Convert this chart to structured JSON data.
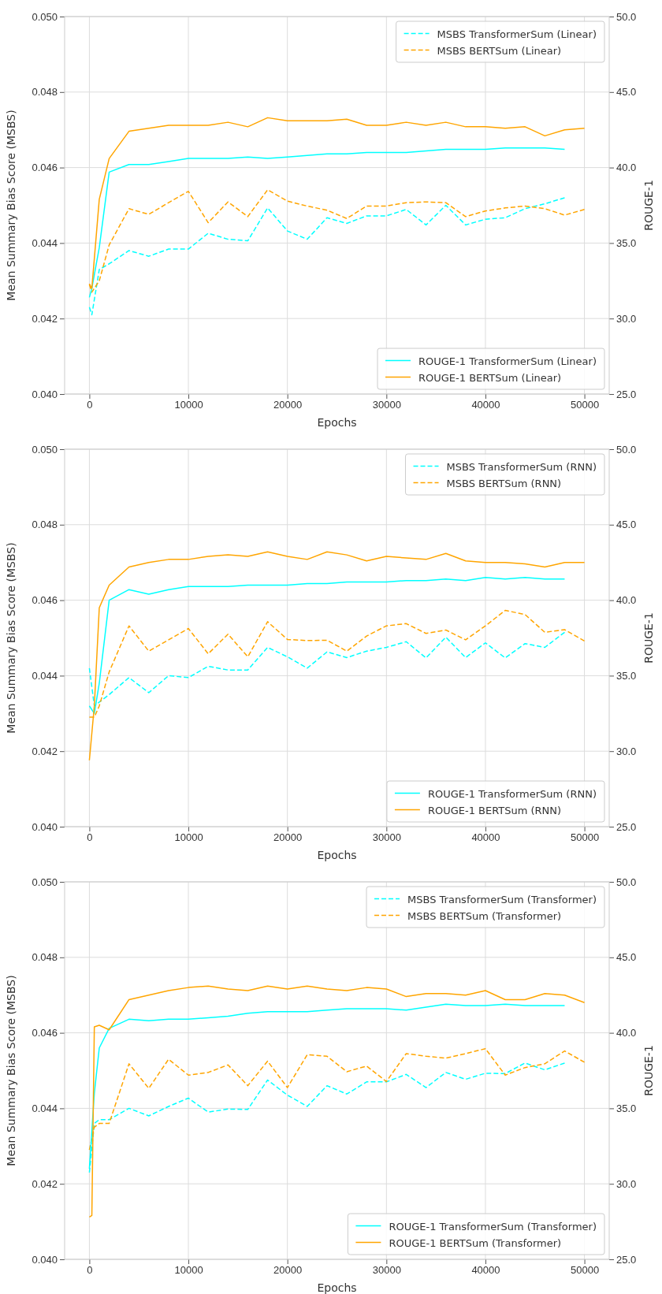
{
  "chart_data": [
    {
      "type": "line",
      "xlabel": "Epochs",
      "ylabel": "Mean Summary Bias Score (MSBS)",
      "y2label": "ROUGE-1",
      "xlim": [
        -2500,
        52500
      ],
      "xticks": [
        0,
        10000,
        20000,
        30000,
        40000,
        50000
      ],
      "ylim": [
        0.04,
        0.05
      ],
      "yticks": [
        {
          "value": 0.04,
          "label": "0.040"
        },
        {
          "value": 0.042,
          "label": "0.042"
        },
        {
          "value": 0.044,
          "label": "0.044"
        },
        {
          "value": 0.046,
          "label": "0.046"
        },
        {
          "value": 0.048,
          "label": "0.048"
        },
        {
          "value": 0.05,
          "label": "0.050"
        }
      ],
      "y2lim": [
        25,
        50
      ],
      "y2ticks": [
        {
          "value": 25,
          "label": "25.0"
        },
        {
          "value": 30,
          "label": "30.0"
        },
        {
          "value": 35,
          "label": "35.0"
        },
        {
          "value": 40,
          "label": "40.0"
        },
        {
          "value": 45,
          "label": "45.0"
        },
        {
          "value": 50,
          "label": "50.0"
        }
      ],
      "grid": true,
      "legend": "right",
      "series": [
        {
          "name": "MSBS TransformerSum (Linear)",
          "color": "#00ffff",
          "line_style": "dashed",
          "x": [
            0,
            250,
            1000,
            2000,
            4000,
            6000,
            8000,
            10000,
            12000,
            14000,
            16000,
            18000,
            20000,
            22000,
            24000,
            26000,
            28000,
            30000,
            32000,
            34000,
            36000,
            38000,
            40000,
            42000,
            44000,
            46000,
            48000
          ],
          "values": [
            0.0423,
            0.0421,
            0.0433,
            0.04345,
            0.0438,
            0.04365,
            0.04384,
            0.04384,
            0.04426,
            0.0441,
            0.04406,
            0.04493,
            0.04432,
            0.0441,
            0.04467,
            0.04452,
            0.04472,
            0.04472,
            0.04489,
            0.04448,
            0.045,
            0.04448,
            0.04463,
            0.04467,
            0.04491,
            0.04504,
            0.0452
          ]
        },
        {
          "name": "MSBS BERTSum (Linear)",
          "color": "#ffa500",
          "line_style": "dashed",
          "x": [
            0,
            250,
            1000,
            2000,
            4000,
            6000,
            8000,
            10000,
            12000,
            14000,
            16000,
            18000,
            20000,
            22000,
            24000,
            26000,
            28000,
            30000,
            32000,
            34000,
            36000,
            38000,
            40000,
            42000,
            44000,
            46000,
            48000,
            50000
          ],
          "values": [
            0.0429,
            0.0427,
            0.043,
            0.04395,
            0.04491,
            0.04476,
            0.04507,
            0.04537,
            0.04454,
            0.04509,
            0.0447,
            0.04541,
            0.04511,
            0.04498,
            0.04487,
            0.04465,
            0.04498,
            0.04498,
            0.04507,
            0.04509,
            0.04507,
            0.0447,
            0.04485,
            0.04493,
            0.04498,
            0.04491,
            0.04474,
            0.04489
          ]
        },
        {
          "name": "ROUGE-1 TransformerSum (Linear)",
          "color": "#00ffff",
          "line_style": "solid",
          "axis": "y2",
          "x": [
            0,
            250,
            1000,
            2000,
            4000,
            6000,
            8000,
            10000,
            12000,
            14000,
            16000,
            18000,
            20000,
            22000,
            24000,
            26000,
            28000,
            30000,
            32000,
            34000,
            36000,
            38000,
            40000,
            42000,
            44000,
            46000,
            48000
          ],
          "values": [
            31.4,
            32,
            34.7,
            39.7,
            40.2,
            40.2,
            40.4,
            40.6,
            40.6,
            40.6,
            40.7,
            40.6,
            40.7,
            40.8,
            40.9,
            40.9,
            41.0,
            41.0,
            41.0,
            41.1,
            41.2,
            41.2,
            41.2,
            41.3,
            41.3,
            41.3,
            41.2
          ]
        },
        {
          "name": "ROUGE-1 BERTSum (Linear)",
          "color": "#ffa500",
          "line_style": "solid",
          "axis": "y2",
          "x": [
            0,
            250,
            1000,
            2000,
            4000,
            6000,
            8000,
            10000,
            12000,
            14000,
            16000,
            18000,
            20000,
            22000,
            24000,
            26000,
            28000,
            30000,
            32000,
            34000,
            36000,
            38000,
            40000,
            42000,
            44000,
            46000,
            48000,
            50000
          ],
          "values": [
            32.3,
            32.0,
            37.9,
            40.6,
            42.4,
            42.6,
            42.8,
            42.8,
            42.8,
            43.0,
            42.7,
            43.3,
            43.1,
            43.1,
            43.1,
            43.2,
            42.8,
            42.8,
            43.0,
            42.8,
            43.0,
            42.7,
            42.7,
            42.6,
            42.7,
            42.1,
            42.5,
            42.6
          ]
        }
      ]
    },
    {
      "type": "line",
      "xlabel": "Epochs",
      "ylabel": "Mean Summary Bias Score (MSBS)",
      "y2label": "ROUGE-1",
      "xlim": [
        -2500,
        52500
      ],
      "xticks": [
        0,
        10000,
        20000,
        30000,
        40000,
        50000
      ],
      "ylim": [
        0.04,
        0.05
      ],
      "yticks": [
        {
          "value": 0.04,
          "label": "0.040"
        },
        {
          "value": 0.042,
          "label": "0.042"
        },
        {
          "value": 0.044,
          "label": "0.044"
        },
        {
          "value": 0.046,
          "label": "0.046"
        },
        {
          "value": 0.048,
          "label": "0.048"
        },
        {
          "value": 0.05,
          "label": "0.050"
        }
      ],
      "y2lim": [
        25,
        50
      ],
      "y2ticks": [
        {
          "value": 25,
          "label": "25.0"
        },
        {
          "value": 30,
          "label": "30.0"
        },
        {
          "value": 35,
          "label": "35.0"
        },
        {
          "value": 40,
          "label": "40.0"
        },
        {
          "value": 45,
          "label": "45.0"
        },
        {
          "value": 50,
          "label": "50.0"
        }
      ],
      "grid": true,
      "legend": "right",
      "series": [
        {
          "name": "MSBS TransformerSum (RNN)",
          "color": "#00ffff",
          "line_style": "dashed",
          "x": [
            0,
            500,
            1000,
            2000,
            4000,
            6000,
            8000,
            10000,
            12000,
            14000,
            16000,
            18000,
            20000,
            22000,
            24000,
            26000,
            28000,
            30000,
            32000,
            34000,
            36000,
            38000,
            40000,
            42000,
            44000,
            46000,
            48000
          ],
          "values": [
            0.0442,
            0.0432,
            0.0433,
            0.0435,
            0.04395,
            0.04355,
            0.044,
            0.04395,
            0.04425,
            0.04415,
            0.04415,
            0.04475,
            0.0445,
            0.0442,
            0.04463,
            0.04448,
            0.04465,
            0.04475,
            0.0449,
            0.04447,
            0.04502,
            0.04448,
            0.04487,
            0.04447,
            0.04485,
            0.04475,
            0.04515
          ]
        },
        {
          "name": "MSBS BERTSum (RNN)",
          "color": "#ffa500",
          "line_style": "dashed",
          "x": [
            0,
            500,
            1000,
            2000,
            4000,
            6000,
            8000,
            10000,
            12000,
            14000,
            16000,
            18000,
            20000,
            22000,
            24000,
            26000,
            28000,
            30000,
            32000,
            34000,
            36000,
            38000,
            40000,
            42000,
            44000,
            46000,
            48000,
            50000
          ],
          "values": [
            0.0429,
            0.0429,
            0.0432,
            0.0441,
            0.04532,
            0.04465,
            0.04495,
            0.04525,
            0.04458,
            0.0451,
            0.0445,
            0.04543,
            0.04496,
            0.04493,
            0.04494,
            0.04465,
            0.04505,
            0.04532,
            0.04538,
            0.04512,
            0.04521,
            0.04495,
            0.04532,
            0.04573,
            0.04562,
            0.04515,
            0.04522,
            0.04492
          ]
        },
        {
          "name": "ROUGE-1 TransformerSum (RNN)",
          "color": "#00ffff",
          "line_style": "solid",
          "axis": "y2",
          "x": [
            0,
            500,
            1000,
            2000,
            4000,
            6000,
            8000,
            10000,
            12000,
            14000,
            16000,
            18000,
            20000,
            22000,
            24000,
            26000,
            28000,
            30000,
            32000,
            34000,
            36000,
            38000,
            40000,
            42000,
            44000,
            46000,
            48000
          ],
          "values": [
            33.0,
            32.5,
            34.5,
            40.0,
            40.7,
            40.4,
            40.7,
            40.9,
            40.9,
            40.9,
            41.0,
            41.0,
            41.0,
            41.1,
            41.1,
            41.2,
            41.2,
            41.2,
            41.3,
            41.3,
            41.4,
            41.3,
            41.5,
            41.4,
            41.5,
            41.4,
            41.4
          ]
        },
        {
          "name": "ROUGE-1 BERTSum (RNN)",
          "color": "#ffa500",
          "line_style": "solid",
          "axis": "y2",
          "x": [
            0,
            500,
            1000,
            2000,
            4000,
            6000,
            8000,
            10000,
            12000,
            14000,
            16000,
            18000,
            20000,
            22000,
            24000,
            26000,
            28000,
            30000,
            32000,
            34000,
            36000,
            38000,
            40000,
            42000,
            44000,
            46000,
            48000,
            50000
          ],
          "values": [
            29.4,
            33,
            39.5,
            41.0,
            42.2,
            42.5,
            42.7,
            42.7,
            42.9,
            43.0,
            42.9,
            43.2,
            42.9,
            42.7,
            43.2,
            43.0,
            42.6,
            42.9,
            42.8,
            42.7,
            43.1,
            42.6,
            42.5,
            42.5,
            42.4,
            42.2,
            42.5,
            42.5
          ]
        }
      ]
    },
    {
      "type": "line",
      "xlabel": "Epochs",
      "ylabel": "Mean Summary Bias Score (MSBS)",
      "y2label": "ROUGE-1",
      "xlim": [
        -2500,
        52500
      ],
      "xticks": [
        0,
        10000,
        20000,
        30000,
        40000,
        50000
      ],
      "ylim": [
        0.04,
        0.05
      ],
      "yticks": [
        {
          "value": 0.04,
          "label": "0.040"
        },
        {
          "value": 0.042,
          "label": "0.042"
        },
        {
          "value": 0.044,
          "label": "0.044"
        },
        {
          "value": 0.046,
          "label": "0.046"
        },
        {
          "value": 0.048,
          "label": "0.048"
        },
        {
          "value": 0.05,
          "label": "0.050"
        }
      ],
      "y2lim": [
        25,
        50
      ],
      "y2ticks": [
        {
          "value": 25,
          "label": "25.0"
        },
        {
          "value": 30,
          "label": "30.0"
        },
        {
          "value": 35,
          "label": "35.0"
        },
        {
          "value": 40,
          "label": "40.0"
        },
        {
          "value": 45,
          "label": "45.0"
        },
        {
          "value": 50,
          "label": "50.0"
        }
      ],
      "grid": true,
      "legend": "right",
      "series": [
        {
          "name": "MSBS TransformerSum (Transformer)",
          "color": "#00ffff",
          "line_style": "dashed",
          "x": [
            0,
            500,
            1000,
            2000,
            4000,
            6000,
            8000,
            10000,
            12000,
            14000,
            16000,
            18000,
            20000,
            22000,
            24000,
            26000,
            28000,
            30000,
            32000,
            34000,
            36000,
            38000,
            40000,
            42000,
            44000,
            46000,
            48000
          ],
          "values": [
            0.0423,
            0.0436,
            0.0437,
            0.0437,
            0.044,
            0.0438,
            0.04405,
            0.04427,
            0.0439,
            0.04398,
            0.04397,
            0.04475,
            0.04435,
            0.04405,
            0.0446,
            0.04438,
            0.0447,
            0.0447,
            0.0449,
            0.04455,
            0.04495,
            0.04477,
            0.04493,
            0.04492,
            0.0452,
            0.04502,
            0.0452
          ]
        },
        {
          "name": "MSBS BERTSum (Transformer)",
          "color": "#ffa500",
          "line_style": "dashed",
          "x": [
            0,
            500,
            1000,
            2000,
            4000,
            6000,
            8000,
            10000,
            12000,
            14000,
            16000,
            18000,
            20000,
            22000,
            24000,
            26000,
            28000,
            30000,
            32000,
            34000,
            36000,
            38000,
            40000,
            42000,
            44000,
            46000,
            48000,
            50000
          ],
          "values": [
            0.0429,
            0.0435,
            0.0436,
            0.0436,
            0.04518,
            0.04453,
            0.0453,
            0.04488,
            0.04495,
            0.04515,
            0.0446,
            0.04525,
            0.04455,
            0.04542,
            0.04538,
            0.04497,
            0.04512,
            0.04471,
            0.04545,
            0.04538,
            0.04533,
            0.04545,
            0.04558,
            0.04488,
            0.04508,
            0.04518,
            0.04552,
            0.04522
          ]
        },
        {
          "name": "ROUGE-1 TransformerSum (Transformer)",
          "color": "#00ffff",
          "line_style": "solid",
          "axis": "y2",
          "x": [
            0,
            500,
            1000,
            2000,
            4000,
            6000,
            8000,
            10000,
            12000,
            14000,
            16000,
            18000,
            20000,
            22000,
            24000,
            26000,
            28000,
            30000,
            32000,
            34000,
            36000,
            38000,
            40000,
            42000,
            44000,
            46000,
            48000
          ],
          "values": [
            31.0,
            36,
            39.0,
            40.3,
            40.9,
            40.8,
            40.9,
            40.9,
            41.0,
            41.1,
            41.3,
            41.4,
            41.4,
            41.4,
            41.5,
            41.6,
            41.6,
            41.6,
            41.5,
            41.7,
            41.9,
            41.8,
            41.8,
            41.9,
            41.8,
            41.8,
            41.8
          ]
        },
        {
          "name": "ROUGE-1 BERTSum (Transformer)",
          "color": "#ffa500",
          "line_style": "solid",
          "axis": "y2",
          "x": [
            0,
            250,
            500,
            1000,
            2000,
            4000,
            6000,
            8000,
            10000,
            12000,
            14000,
            16000,
            18000,
            20000,
            22000,
            24000,
            26000,
            28000,
            30000,
            32000,
            34000,
            36000,
            38000,
            40000,
            42000,
            44000,
            46000,
            48000,
            50000
          ],
          "values": [
            27.8,
            27.9,
            40.4,
            40.5,
            40.2,
            42.2,
            42.5,
            42.8,
            43.0,
            43.1,
            42.9,
            42.8,
            43.1,
            42.9,
            43.1,
            42.9,
            42.8,
            43.0,
            42.9,
            42.4,
            42.6,
            42.6,
            42.5,
            42.8,
            42.2,
            42.2,
            42.6,
            42.5,
            42.0
          ]
        }
      ]
    }
  ]
}
